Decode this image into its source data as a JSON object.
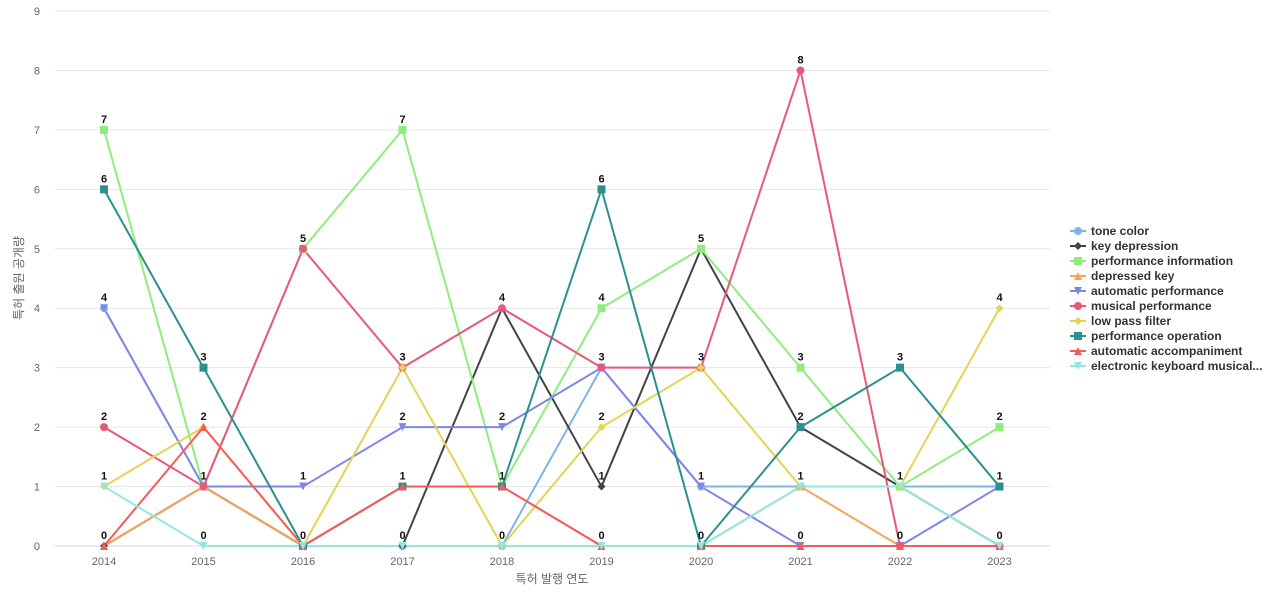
{
  "chart_data": {
    "type": "line",
    "xlabel": "특허 발행 연도",
    "ylabel": "특허 출원 공개량",
    "x": [
      "2014",
      "2015",
      "2016",
      "2017",
      "2018",
      "2019",
      "2020",
      "2021",
      "2022",
      "2023"
    ],
    "ylim": [
      0,
      9
    ],
    "yticks": [
      "0",
      "1",
      "2",
      "3",
      "4",
      "5",
      "6",
      "7",
      "8",
      "9"
    ],
    "grid": true,
    "legend_position": "right",
    "series": [
      {
        "name": "tone color",
        "color": "#7cb5ec",
        "marker": "circle",
        "values": [
          4,
          1,
          0,
          0,
          0,
          3,
          1,
          1,
          1,
          1
        ]
      },
      {
        "name": "key depression",
        "color": "#434348",
        "marker": "diamond",
        "values": [
          0,
          1,
          0,
          0,
          4,
          1,
          5,
          2,
          1,
          0
        ]
      },
      {
        "name": "performance information",
        "color": "#90ed7d",
        "marker": "square",
        "values": [
          7,
          1,
          5,
          7,
          1,
          4,
          5,
          3,
          1,
          2
        ]
      },
      {
        "name": "depressed key",
        "color": "#f7a35c",
        "marker": "triangle",
        "values": [
          0,
          1,
          0,
          1,
          1,
          0,
          0,
          1,
          0,
          0
        ]
      },
      {
        "name": "automatic performance",
        "color": "#8085e9",
        "marker": "triangle-down",
        "values": [
          4,
          1,
          1,
          2,
          2,
          3,
          1,
          0,
          0,
          1
        ]
      },
      {
        "name": "musical performance",
        "color": "#e9577a",
        "marker": "circle",
        "values": [
          2,
          1,
          5,
          3,
          4,
          3,
          3,
          8,
          0,
          0
        ]
      },
      {
        "name": "low pass filter",
        "color": "#e4d354",
        "marker": "diamond",
        "values": [
          1,
          2,
          0,
          3,
          0,
          2,
          3,
          1,
          1,
          4
        ]
      },
      {
        "name": "performance operation",
        "color": "#2b908f",
        "marker": "square",
        "values": [
          6,
          3,
          0,
          1,
          1,
          6,
          0,
          2,
          3,
          1
        ]
      },
      {
        "name": "automatic accompaniment",
        "color": "#f45b5b",
        "marker": "triangle",
        "values": [
          0,
          2,
          0,
          1,
          1,
          0,
          0,
          0,
          0,
          0
        ]
      },
      {
        "name": "electronic keyboard musical...",
        "color": "#91e8e1",
        "marker": "triangle-down",
        "values": [
          1,
          0,
          0,
          0,
          0,
          0,
          0,
          1,
          1,
          0
        ]
      }
    ],
    "data_labels": [
      {
        "x": "2014",
        "values": [
          "7",
          "6",
          "4",
          "2",
          "1",
          "0"
        ]
      },
      {
        "x": "2015",
        "values": [
          "3",
          "2",
          "1",
          "0"
        ]
      },
      {
        "x": "2016",
        "values": [
          "5",
          "1",
          "0"
        ]
      },
      {
        "x": "2017",
        "values": [
          "7",
          "3",
          "2",
          "1",
          "0"
        ]
      },
      {
        "x": "2018",
        "values": [
          "4",
          "2",
          "1",
          "0"
        ]
      },
      {
        "x": "2019",
        "values": [
          "6",
          "4",
          "3",
          "2",
          "1",
          "0"
        ]
      },
      {
        "x": "2020",
        "values": [
          "5",
          "3",
          "1",
          "0"
        ]
      },
      {
        "x": "2021",
        "values": [
          "8",
          "3",
          "2",
          "1",
          "0"
        ]
      },
      {
        "x": "2022",
        "values": [
          "3",
          "1",
          "0"
        ]
      },
      {
        "x": "2023",
        "values": [
          "4",
          "2",
          "1",
          "0"
        ]
      }
    ]
  }
}
